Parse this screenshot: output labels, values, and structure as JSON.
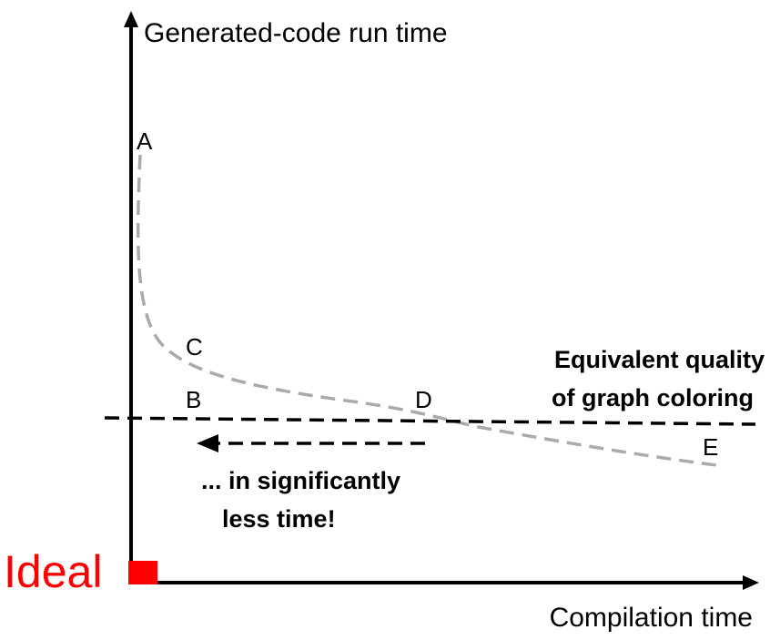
{
  "axes": {
    "y_label": "Generated-code run time",
    "x_label": "Compilation time"
  },
  "points": {
    "a": "A",
    "b": "B",
    "c": "C",
    "d": "D",
    "e": "E"
  },
  "annotations": {
    "equivalent_line1": "Equivalent quality",
    "equivalent_line2": "of graph coloring",
    "less_time_line1": "... in significantly",
    "less_time_line2": "less time!",
    "ideal": "Ideal"
  },
  "colors": {
    "axis": "#000000",
    "curve": "#aaaaaa",
    "reference_line": "#000000",
    "ideal": "#ff0000"
  }
}
